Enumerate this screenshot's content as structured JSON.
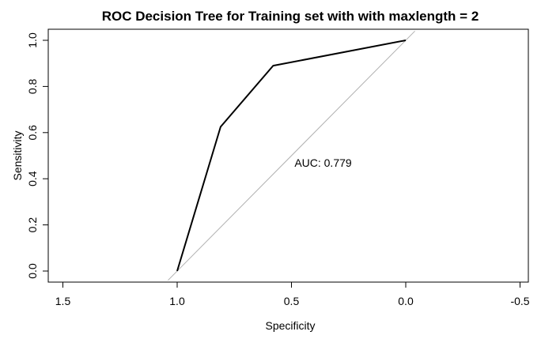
{
  "chart_data": {
    "type": "line",
    "title": "ROC Decision Tree for Training set with with maxlength = 2",
    "xlabel": "Specificity",
    "ylabel": "Sensitivity",
    "xlim": [
      1.5,
      -0.5
    ],
    "ylim": [
      0.0,
      1.0
    ],
    "x_reversed": true,
    "x_ticks": [
      1.5,
      1.0,
      0.5,
      0.0,
      -0.5
    ],
    "x_tick_labels": [
      "1.5",
      "1.0",
      "0.5",
      "0.0",
      "-0.5"
    ],
    "y_ticks": [
      0.0,
      0.2,
      0.4,
      0.6,
      0.8,
      1.0
    ],
    "y_tick_labels": [
      "0.0",
      "0.2",
      "0.4",
      "0.6",
      "0.8",
      "1.0"
    ],
    "grid": false,
    "series": [
      {
        "x": [
          1.0,
          0.81,
          0.58,
          0.0
        ],
        "y": [
          0.0,
          0.625,
          0.89,
          1.0
        ],
        "color": "#000000"
      }
    ],
    "diagonal": {
      "from": [
        1.0,
        0.0
      ],
      "to": [
        0.0,
        1.0
      ],
      "color": "#b0b0b0"
    },
    "annotation": {
      "text": "AUC: 0.779",
      "x": 0.5,
      "y": 0.47
    }
  }
}
